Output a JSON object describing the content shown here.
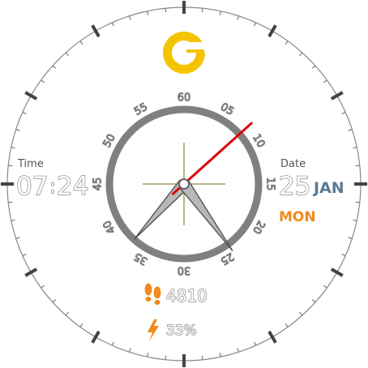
{
  "watchface": {
    "time": {
      "label": "Time",
      "hours": "07",
      "separator": ":",
      "minutes": "24"
    },
    "date": {
      "label": "Date",
      "day": "25",
      "month": "JAN",
      "weekday": "MON"
    },
    "steps": {
      "value": "4810",
      "icon": "footprints-icon"
    },
    "battery": {
      "value": "33%",
      "icon": "lightning-icon"
    },
    "logo": {
      "icon": "g-logo-icon"
    },
    "dial_numbers": [
      "60",
      "05",
      "10",
      "15",
      "20",
      "25",
      "30",
      "35",
      "40",
      "45",
      "50",
      "55"
    ],
    "hands": {
      "hour": 7,
      "minute": 24,
      "second": 8
    },
    "colors": {
      "accent_orange": "#f08a1c",
      "logo_yellow": "#f5c400",
      "second_hand": "#e00000",
      "month_blue": "#5a7a96",
      "ring_gray": "#808080",
      "crosshair": "#7a6a10"
    }
  }
}
